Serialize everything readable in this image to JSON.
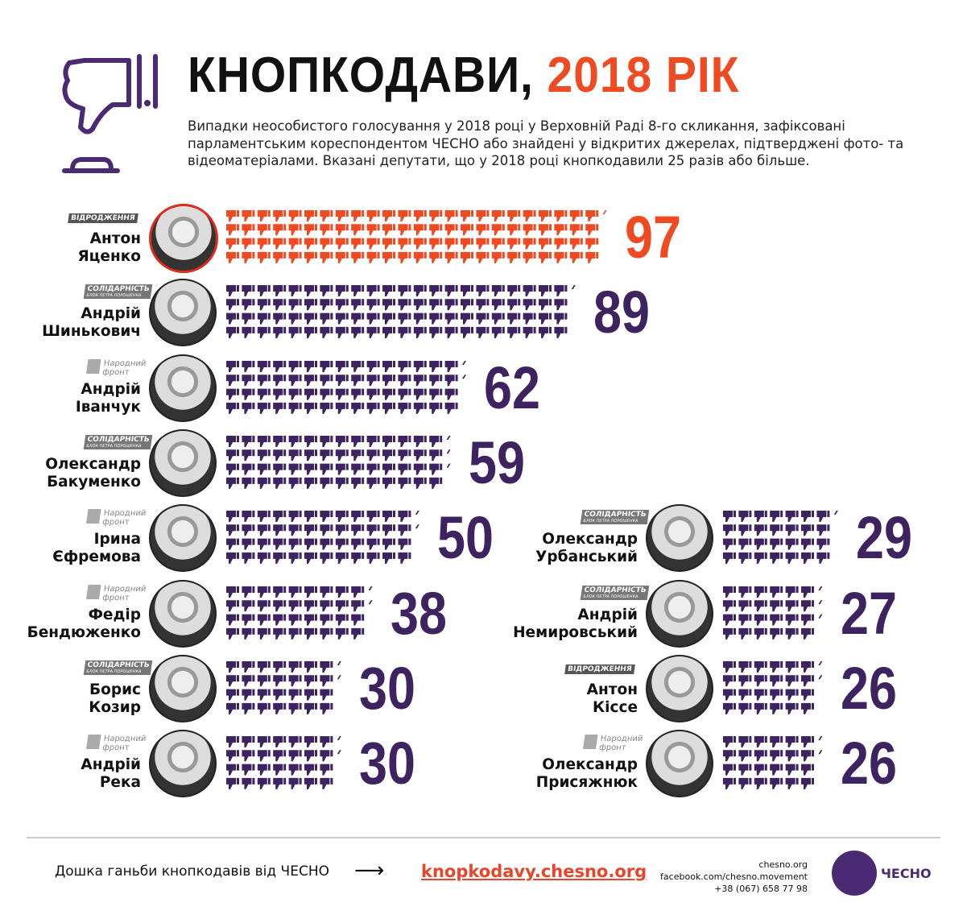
{
  "header": {
    "title_main": "КНОПКОДАВИ, ",
    "title_year": "2018 РІК",
    "subtitle": "Випадки неособистого голосування у 2018 році у Верховній Раді 8-го скликання, зафіксовані парламентським кореспондентом ЧЕСНО або знайдені у відкритих джерелах, підтверджені фото- та відеоматеріалами. Вказані депутати, що у 2018 році кнопкодавили 25 разів або більше."
  },
  "colors": {
    "accent": "#f04a23",
    "primary": "#3d2460"
  },
  "parties": {
    "vid": "ВІДРОДЖЕННЯ",
    "sol": "СОЛІДАРНІСТЬ",
    "sol_sub": "БЛОК ПЕТРА ПОРОШЕНКА",
    "nf1": "Народний",
    "nf2": "фронт"
  },
  "chart_data": {
    "type": "pictogram-bar",
    "unit_icon": "thumbs-down-icon",
    "categories": [
      "Антон Яценко",
      "Андрій Шинькович",
      "Андрій Іванчук",
      "Олександр Бакуменко",
      "Ірина Єфремова",
      "Федір Бендюженко",
      "Борис Козир",
      "Андрій Река",
      "Олександр Урбанський",
      "Андрій Немировський",
      "Антон Кіссе",
      "Олександр Присяжнюк"
    ],
    "values": [
      97,
      89,
      62,
      59,
      50,
      38,
      30,
      30,
      29,
      27,
      26,
      26
    ]
  },
  "deputies": [
    {
      "first": "Антон",
      "last": "Яценко",
      "party": "vid",
      "value": "97"
    },
    {
      "first": "Андрій",
      "last": "Шинькович",
      "party": "sol",
      "value": "89"
    },
    {
      "first": "Андрій",
      "last": "Іванчук",
      "party": "nf",
      "value": "62"
    },
    {
      "first": "Олександр",
      "last": "Бакуменко",
      "party": "sol",
      "value": "59"
    },
    {
      "first": "Ірина",
      "last": "Єфремова",
      "party": "nf",
      "value": "50"
    },
    {
      "first": "Федір",
      "last": "Бендюженко",
      "party": "nf",
      "value": "38"
    },
    {
      "first": "Борис",
      "last": "Козир",
      "party": "sol",
      "value": "30"
    },
    {
      "first": "Андрій",
      "last": "Река",
      "party": "nf",
      "value": "30"
    },
    {
      "first": "Олександр",
      "last": "Урбанський",
      "party": "sol",
      "value": "29"
    },
    {
      "first": "Андрій",
      "last": "Немировський",
      "party": "sol",
      "value": "27"
    },
    {
      "first": "Антон",
      "last": "Кіссе",
      "party": "vid",
      "value": "26"
    },
    {
      "first": "Олександр",
      "last": "Присяжнюк",
      "party": "nf",
      "value": "26"
    }
  ],
  "footer": {
    "text": "Дошка ганьби кнопкодавів від ЧЕСНО",
    "arrow": "⟶",
    "link": "knopkodavy.chesno.org",
    "site": "chesno.org",
    "facebook": "facebook.com/chesno.movement",
    "phone": "+38 (067) 658 77 98",
    "logo": "ЧЕСНО"
  }
}
